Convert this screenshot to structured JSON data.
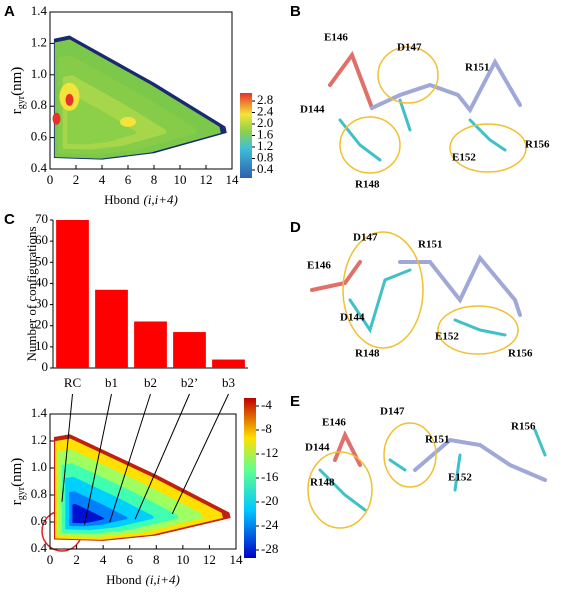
{
  "panels": [
    "A",
    "B",
    "C",
    "D",
    "E"
  ],
  "chart_data": [
    {
      "type": "contour",
      "x_label": "Hbond",
      "x_label_italic": "(i,i+4)",
      "y_label": "r",
      "y_label_sub": "gyr",
      "y_label_unit": "(nm)",
      "xlim": [
        0,
        14
      ],
      "xticks": [
        0,
        2,
        4,
        6,
        8,
        10,
        12,
        14
      ],
      "ylim": [
        0.4,
        1.4
      ],
      "yticks": [
        0.4,
        0.6,
        0.8,
        {
          "value": 1,
          "label": "1.0"
        },
        1.2,
        1.4
      ],
      "clim": [
        0.4,
        2.8
      ],
      "cticks": [
        0.4,
        0.8,
        1.2,
        1.6,
        {
          "value": 2,
          "label": "2.0"
        },
        2.4,
        2.8
      ]
    },
    {
      "type": "bar",
      "y_label": "Number of configurations",
      "categories": [
        "RC",
        "b1",
        "b2",
        "b2’",
        "b3"
      ],
      "values": [
        70,
        37,
        22,
        17,
        4
      ],
      "color": "#ff0000",
      "ylim": [
        0,
        70
      ],
      "yticks": [
        0,
        10,
        20,
        30,
        40,
        50,
        60,
        70
      ]
    },
    {
      "type": "contour",
      "x_label": "Hbond",
      "x_label_italic": "(i,i+4)",
      "y_label": "r",
      "y_label_sub": "gyr",
      "y_label_unit": "(nm)",
      "xlim": [
        0,
        14
      ],
      "xticks": [
        0,
        2,
        4,
        6,
        8,
        10,
        12,
        14
      ],
      "ylim": [
        0.4,
        1.4
      ],
      "yticks": [
        0.4,
        0.6,
        0.8,
        {
          "value": 1,
          "label": "1.0"
        },
        1.2,
        1.4
      ],
      "clim": [
        -28,
        -4
      ],
      "cticks": [
        -4,
        -8,
        -12,
        -16,
        -20,
        -24,
        -28
      ]
    }
  ],
  "molecules": {
    "B": [
      "E146",
      "D147",
      "R151",
      "D144",
      "E152",
      "R156",
      "R148"
    ],
    "D": [
      "D147",
      "R151",
      "E146",
      "D144",
      "E152",
      "R148",
      "R156"
    ],
    "E": [
      "E146",
      "D147",
      "R151",
      "R156",
      "D144",
      "R148",
      "E152"
    ]
  }
}
